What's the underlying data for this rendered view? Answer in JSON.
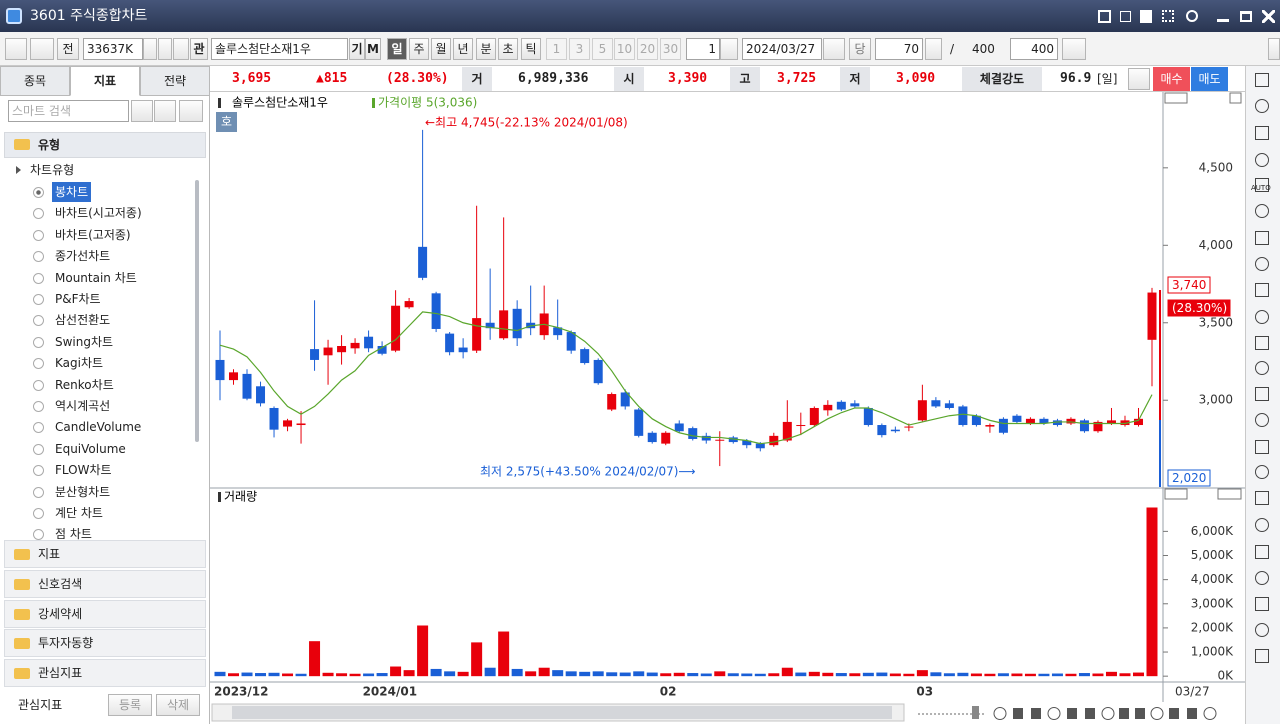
{
  "window": {
    "title": "3601 주식종합차트"
  },
  "toolbar": {
    "prev_label": "전",
    "code": "33637K",
    "search_label": "관",
    "name": "솔루스첨단소재1우",
    "flags": [
      "기",
      "M"
    ],
    "periods": [
      "일",
      "주",
      "월",
      "년",
      "분",
      "초",
      "틱"
    ],
    "intervals": [
      "1",
      "3",
      "5",
      "10",
      "20",
      "30"
    ],
    "interval_value": "1",
    "date": "2024/03/27",
    "today": "당",
    "count": "70",
    "separator": "/",
    "total": "400",
    "display": "400"
  },
  "quote": {
    "price": "3,695",
    "change": "▲815",
    "rate": "(28.30%)",
    "volume_label": "거",
    "volume": "6,989,336",
    "open_label": "시",
    "open": "3,390",
    "high_label": "고",
    "high": "3,725",
    "low_label": "저",
    "low": "3,090",
    "strength_label": "체결강도",
    "strength": "96.9",
    "period": "[일]",
    "buy": "매수",
    "sell": "매도"
  },
  "left_panel": {
    "tabs": [
      "종목",
      "지표",
      "전략"
    ],
    "search_placeholder": "스마트 검색",
    "group": "유형",
    "subgroup": "차트유형",
    "chart_types": [
      "봉차트",
      "바차트(시고저종)",
      "바차트(고저종)",
      "종가선차트",
      "Mountain 차트",
      "P&F차트",
      "삼선전환도",
      "Swing차트",
      "Kagi차트",
      "Renko차트",
      "역시계곡선",
      "CandleVolume",
      "EquiVolume",
      "FLOW차트",
      "분산형차트",
      "계단 차트",
      "점 차트"
    ],
    "sections": [
      "지표",
      "신호검색",
      "강세약세",
      "투자자동향",
      "관심지표"
    ],
    "footer": {
      "label": "관심지표",
      "add": "등록",
      "delete": "삭제"
    }
  },
  "right_toolbar": {
    "auto_label": "AUTO"
  },
  "chart_data": [
    {
      "type": "candlestick",
      "title": "솔루스첨단소재1우",
      "order_label": "호",
      "categories": [
        "2023/12",
        null,
        null,
        null,
        null,
        null,
        null,
        null,
        null,
        null,
        null,
        "2024/01",
        null,
        null,
        null,
        null,
        null,
        null,
        null,
        null,
        null,
        null,
        null,
        null,
        null,
        null,
        null,
        null,
        null,
        null,
        null,
        null,
        null,
        "02",
        null,
        null,
        null,
        null,
        null,
        null,
        null,
        null,
        null,
        null,
        null,
        null,
        null,
        null,
        null,
        null,
        null,
        null,
        "03",
        null,
        null,
        null,
        null,
        null,
        null,
        null,
        null,
        null,
        null,
        null,
        null,
        null,
        null,
        null,
        null,
        null
      ],
      "last_date": "03/27",
      "open": [
        3260,
        3130,
        3170,
        3090,
        2950,
        2830,
        2840,
        3330,
        3290,
        3310,
        3335,
        3410,
        3350,
        3320,
        3600,
        3990,
        3690,
        3430,
        3340,
        3320,
        3500,
        3400,
        3590,
        3500,
        3420,
        3470,
        3440,
        3330,
        3260,
        2940,
        3050,
        2940,
        2790,
        2720,
        2850,
        2820,
        2770,
        2745,
        2760,
        2740,
        2720,
        2710,
        2740,
        2840,
        2840,
        2935,
        2990,
        2980,
        2950,
        2840,
        2810,
        2830,
        2870,
        3000,
        2980,
        2960,
        2900,
        2830,
        2880,
        2900,
        2850,
        2880,
        2870,
        2850,
        2870,
        2800,
        2850,
        2840,
        2840,
        3390
      ],
      "high": [
        3450,
        3200,
        3200,
        3120,
        2960,
        2880,
        2930,
        3645,
        3390,
        3420,
        3400,
        3450,
        3380,
        3710,
        3660,
        4745,
        3700,
        3440,
        3400,
        4255,
        3850,
        4180,
        3645,
        3740,
        3740,
        3650,
        3450,
        3340,
        3270,
        3050,
        3070,
        2950,
        2800,
        2800,
        2870,
        2830,
        2790,
        2800,
        2770,
        2750,
        2730,
        2790,
        3000,
        2920,
        2960,
        3000,
        3000,
        3000,
        2960,
        2850,
        2830,
        2850,
        3100,
        3020,
        3000,
        2970,
        2910,
        2850,
        2890,
        2910,
        2890,
        2890,
        2880,
        2890,
        2880,
        2870,
        2950,
        2900,
        2950,
        3725
      ],
      "low": [
        3000,
        3100,
        3000,
        2960,
        2760,
        2800,
        2720,
        3190,
        3100,
        3230,
        3300,
        3310,
        3290,
        3310,
        3590,
        3775,
        3440,
        3290,
        3270,
        3305,
        3390,
        3390,
        3350,
        3420,
        3390,
        3390,
        3300,
        3230,
        3100,
        2930,
        2940,
        2760,
        2720,
        2710,
        2790,
        2740,
        2720,
        2575,
        2720,
        2690,
        2670,
        2700,
        2730,
        2775,
        2830,
        2900,
        2930,
        2950,
        2830,
        2760,
        2790,
        2800,
        2860,
        2950,
        2940,
        2830,
        2830,
        2790,
        2780,
        2850,
        2840,
        2840,
        2830,
        2840,
        2790,
        2790,
        2840,
        2830,
        2830,
        3090
      ],
      "close": [
        3130,
        3180,
        3010,
        2980,
        2810,
        2870,
        2850,
        3260,
        3340,
        3350,
        3370,
        3335,
        3300,
        3610,
        3640,
        3790,
        3460,
        3310,
        3310,
        3530,
        3465,
        3580,
        3400,
        3465,
        3560,
        3420,
        3320,
        3240,
        3110,
        3040,
        2960,
        2770,
        2730,
        2790,
        2800,
        2750,
        2740,
        2745,
        2730,
        2710,
        2690,
        2770,
        2860,
        2840,
        2950,
        2970,
        2940,
        2960,
        2840,
        2775,
        2800,
        2830,
        3000,
        2960,
        2950,
        2840,
        2840,
        2840,
        2790,
        2860,
        2880,
        2850,
        2840,
        2880,
        2800,
        2860,
        2870,
        2870,
        2880,
        3695
      ],
      "up_color": "#e8000b",
      "down_color": "#1a5fd6",
      "series": [
        {
          "name": "가격이평 5(3,036)",
          "color": "#5aa62c",
          "values": [
            3355,
            3330,
            3280,
            3180,
            3060,
            2960,
            2910,
            2960,
            3040,
            3130,
            3190,
            3290,
            3340,
            3390,
            3480,
            3570,
            3560,
            3540,
            3500,
            3480,
            3470,
            3460,
            3450,
            3480,
            3490,
            3470,
            3440,
            3380,
            3300,
            3190,
            3060,
            2960,
            2880,
            2830,
            2790,
            2770,
            2760,
            2760,
            2750,
            2740,
            2720,
            2730,
            2750,
            2780,
            2830,
            2880,
            2920,
            2950,
            2950,
            2920,
            2880,
            2840,
            2860,
            2880,
            2900,
            2910,
            2900,
            2870,
            2850,
            2850,
            2850,
            2850,
            2860,
            2860,
            2850,
            2850,
            2850,
            2850,
            2870,
            3036
          ]
        }
      ],
      "annotations": [
        {
          "text": "←최고 4,745(-22.13% 2024/01/08)",
          "color": "#e8000b"
        },
        {
          "text": "최저 2,575(+43.50% 2024/02/07)⟶",
          "color": "#1a5fd6"
        }
      ],
      "axis_labels": [
        "3,740",
        "(28.30%)",
        "2,020"
      ],
      "ylim": [
        2440,
        4970
      ],
      "yticks": [
        {
          "value": 3000,
          "label": "3,000"
        },
        {
          "value": 3500,
          "label": "3,500"
        },
        {
          "value": 4000,
          "label": "4,000"
        },
        {
          "value": 4500,
          "label": "4,500"
        }
      ]
    },
    {
      "type": "bar",
      "title": "거래량",
      "up_color": "#e8000b",
      "down_color": "#1a5fd6",
      "values": [
        180,
        120,
        150,
        130,
        140,
        110,
        100,
        1450,
        140,
        120,
        100,
        110,
        130,
        400,
        250,
        2100,
        300,
        200,
        180,
        1400,
        350,
        1850,
        300,
        200,
        350,
        250,
        200,
        180,
        200,
        160,
        150,
        200,
        150,
        120,
        140,
        130,
        110,
        200,
        120,
        110,
        100,
        120,
        350,
        150,
        180,
        140,
        130,
        120,
        140,
        150,
        110,
        100,
        250,
        160,
        120,
        140,
        110,
        100,
        120,
        110,
        100,
        100,
        110,
        100,
        130,
        110,
        180,
        120,
        150,
        6989.336
      ],
      "ylim": [
        -200,
        7300
      ],
      "yticks": [
        {
          "value": 0,
          "label": "0K"
        },
        {
          "value": 1000,
          "label": "1,000K"
        },
        {
          "value": 2000,
          "label": "2,000K"
        },
        {
          "value": 3000,
          "label": "3,000K"
        },
        {
          "value": 4000,
          "label": "4,000K"
        },
        {
          "value": 5000,
          "label": "5,000K"
        },
        {
          "value": 6000,
          "label": "6,000K"
        }
      ]
    }
  ]
}
